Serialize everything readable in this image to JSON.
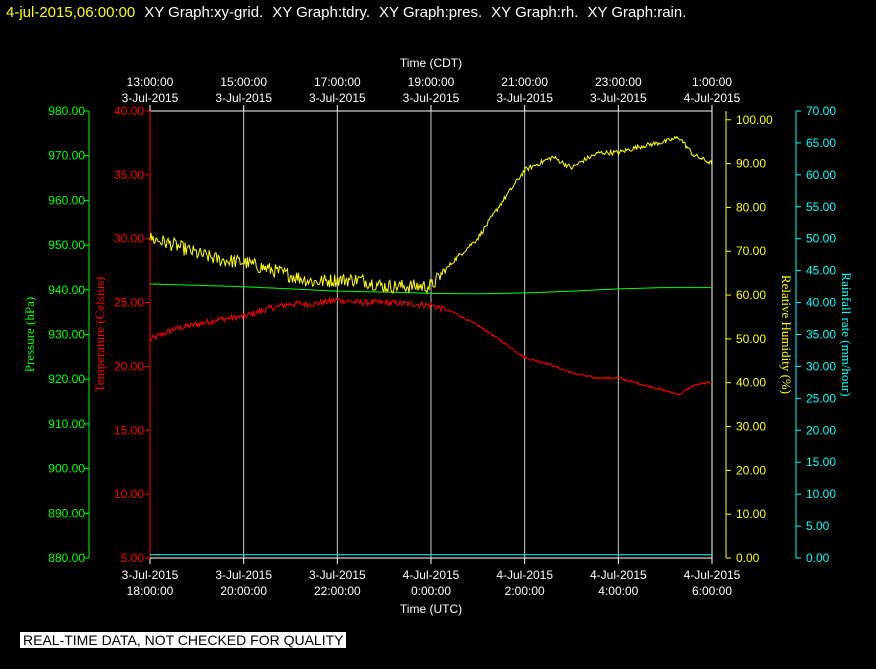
{
  "header": {
    "timestamp": "4-jul-2015,06:00:00",
    "labels": [
      "XY Graph:xy-grid.",
      "XY Graph:tdry.",
      "XY Graph:pres.",
      "XY Graph:rh.",
      "XY Graph:rain."
    ]
  },
  "quality_note": "REAL-TIME DATA, NOT CHECKED FOR QUALITY",
  "colors": {
    "background": "#000000",
    "pressure": "#00ff00",
    "temperature": "#ff0000",
    "humidity": "#ffff00",
    "rain": "#00ffff",
    "grid": "#c8c8c8",
    "time_axis": "#ffffff"
  },
  "chart_data": {
    "type": "line",
    "x_range_hours": [
      0,
      12
    ],
    "top_axis": {
      "title": "Time (CDT)",
      "ticks": [
        {
          "hour": 0,
          "time": "13:00:00",
          "date": "3-Jul-2015"
        },
        {
          "hour": 2,
          "time": "15:00:00",
          "date": "3-Jul-2015"
        },
        {
          "hour": 4,
          "time": "17:00:00",
          "date": "3-Jul-2015"
        },
        {
          "hour": 6,
          "time": "19:00:00",
          "date": "3-Jul-2015"
        },
        {
          "hour": 8,
          "time": "21:00:00",
          "date": "3-Jul-2015"
        },
        {
          "hour": 10,
          "time": "23:00:00",
          "date": "3-Jul-2015"
        },
        {
          "hour": 12,
          "time": "1:00:00",
          "date": "4-Jul-2015"
        }
      ]
    },
    "bottom_axis": {
      "title": "Time (UTC)",
      "ticks": [
        {
          "hour": 0,
          "date": "3-Jul-2015",
          "time": "18:00:00"
        },
        {
          "hour": 2,
          "date": "3-Jul-2015",
          "time": "20:00:00"
        },
        {
          "hour": 4,
          "date": "3-Jul-2015",
          "time": "22:00:00"
        },
        {
          "hour": 6,
          "date": "4-Jul-2015",
          "time": "0:00:00"
        },
        {
          "hour": 8,
          "date": "4-Jul-2015",
          "time": "2:00:00"
        },
        {
          "hour": 10,
          "date": "4-Jul-2015",
          "time": "4:00:00"
        },
        {
          "hour": 12,
          "date": "4-Jul-2015",
          "time": "6:00:00"
        }
      ]
    },
    "axes": {
      "pressure": {
        "label": "Pressure (hPa)",
        "range": [
          880,
          980
        ],
        "ticks": [
          "880.00",
          "890.00",
          "900.00",
          "910.00",
          "920.00",
          "930.00",
          "940.00",
          "950.00",
          "960.00",
          "970.00",
          "980.00"
        ]
      },
      "temperature": {
        "label": "Temperature (Celsius)",
        "range": [
          5,
          40
        ],
        "ticks": [
          "5.00",
          "10.00",
          "15.00",
          "20.00",
          "25.00",
          "30.00",
          "35.00",
          "40.00"
        ]
      },
      "humidity": {
        "label": "Relative Humidity (%)",
        "range": [
          0,
          102
        ],
        "ticks": [
          "0.00",
          "10.00",
          "20.00",
          "30.00",
          "40.00",
          "50.00",
          "60.00",
          "70.00",
          "80.00",
          "90.00",
          "100.00"
        ]
      },
      "rain": {
        "label": "Rainfall rate (mm/hour)",
        "range": [
          0,
          70
        ],
        "ticks": [
          "0.00",
          "5.00",
          "10.00",
          "15.00",
          "20.00",
          "25.00",
          "30.00",
          "35.00",
          "40.00",
          "45.00",
          "50.00",
          "55.00",
          "60.00",
          "65.00",
          "70.00"
        ]
      }
    },
    "series": [
      {
        "key": "pressure",
        "name": "Pressure (hPa)",
        "noise": 0,
        "points": [
          [
            0,
            941.3
          ],
          [
            1,
            941.0
          ],
          [
            2,
            940.7
          ],
          [
            3,
            940.2
          ],
          [
            4,
            939.7
          ],
          [
            5,
            939.5
          ],
          [
            6,
            939.2
          ],
          [
            7,
            939.1
          ],
          [
            8,
            939.3
          ],
          [
            9,
            939.7
          ],
          [
            10,
            940.2
          ],
          [
            11,
            940.5
          ],
          [
            12,
            940.5
          ]
        ]
      },
      {
        "key": "temperature",
        "name": "Temperature (Celsius)",
        "noise": 0.25,
        "points": [
          [
            0,
            22.1
          ],
          [
            0.5,
            22.9
          ],
          [
            1,
            23.3
          ],
          [
            1.5,
            23.7
          ],
          [
            2,
            23.9
          ],
          [
            2.5,
            24.5
          ],
          [
            3,
            24.9
          ],
          [
            3.5,
            24.9
          ],
          [
            4,
            25.2
          ],
          [
            4.5,
            25.0
          ],
          [
            5,
            25.0
          ],
          [
            5.5,
            24.9
          ],
          [
            6,
            24.8
          ],
          [
            6.5,
            24.2
          ],
          [
            7,
            23.2
          ],
          [
            7.5,
            22.0
          ],
          [
            8,
            20.7
          ],
          [
            8.5,
            20.2
          ],
          [
            9,
            19.5
          ],
          [
            9.5,
            19.1
          ],
          [
            10,
            19.1
          ],
          [
            10.5,
            18.6
          ],
          [
            11,
            18.1
          ],
          [
            11.3,
            17.8
          ],
          [
            11.6,
            18.5
          ],
          [
            12,
            18.8
          ]
        ]
      },
      {
        "key": "humidity",
        "name": "Relative Humidity (%)",
        "noise": 1.6,
        "points": [
          [
            0,
            73.0
          ],
          [
            0.5,
            71.5
          ],
          [
            1,
            69.5
          ],
          [
            1.5,
            68.0
          ],
          [
            2,
            67.5
          ],
          [
            2.5,
            66.0
          ],
          [
            3,
            64.5
          ],
          [
            3.5,
            63.0
          ],
          [
            4,
            63.5
          ],
          [
            4.5,
            63.5
          ],
          [
            5,
            62.0
          ],
          [
            5.5,
            62.0
          ],
          [
            6,
            62.0
          ],
          [
            6.5,
            68.0
          ],
          [
            7,
            73.0
          ],
          [
            7.5,
            81.0
          ],
          [
            8,
            88.5
          ],
          [
            8.3,
            90.0
          ],
          [
            8.6,
            91.5
          ],
          [
            9,
            89.0
          ],
          [
            9.3,
            91.0
          ],
          [
            9.6,
            92.5
          ],
          [
            10,
            92.5
          ],
          [
            10.5,
            94.0
          ],
          [
            11,
            95.0
          ],
          [
            11.3,
            96.0
          ],
          [
            11.6,
            92.0
          ],
          [
            12,
            90.0
          ]
        ]
      },
      {
        "key": "rain",
        "name": "Rainfall rate (mm/hour)",
        "noise": 0,
        "points": [
          [
            0,
            0.5
          ],
          [
            12,
            0.5
          ]
        ]
      }
    ]
  }
}
